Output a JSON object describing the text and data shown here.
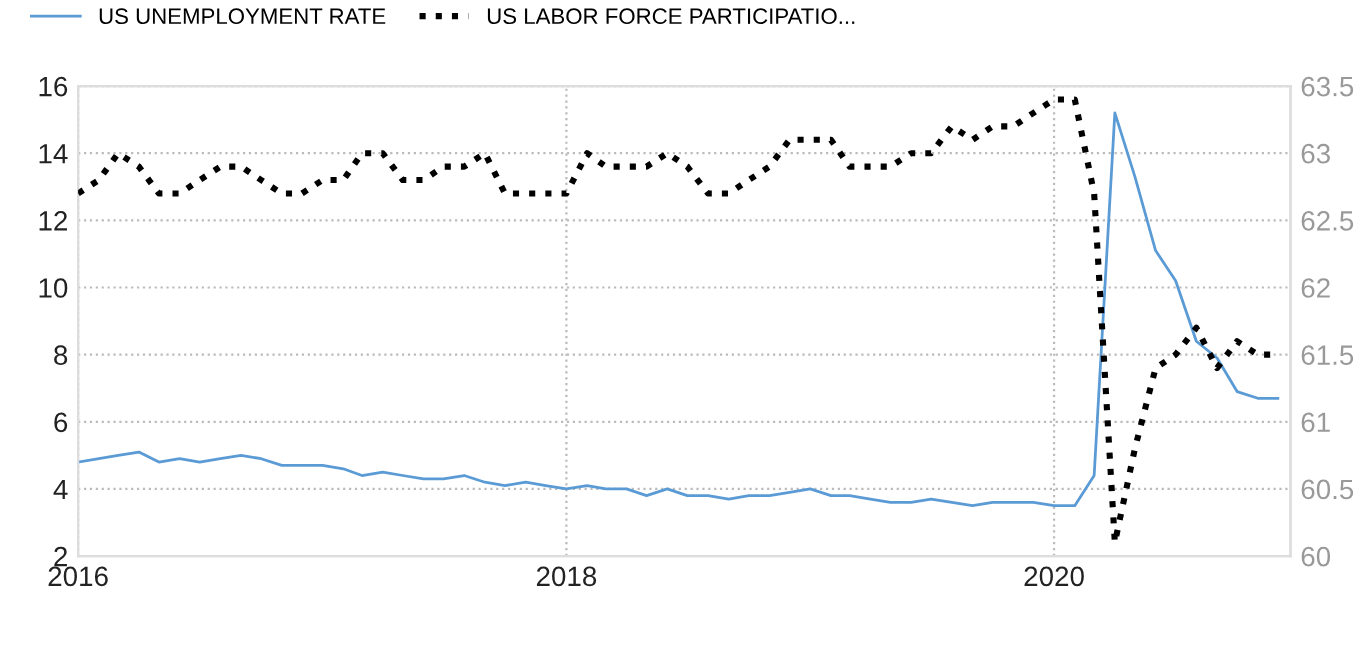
{
  "chart_data": {
    "type": "line",
    "x": [
      "2016-01",
      "2016-02",
      "2016-03",
      "2016-04",
      "2016-05",
      "2016-06",
      "2016-07",
      "2016-08",
      "2016-09",
      "2016-10",
      "2016-11",
      "2016-12",
      "2017-01",
      "2017-02",
      "2017-03",
      "2017-04",
      "2017-05",
      "2017-06",
      "2017-07",
      "2017-08",
      "2017-09",
      "2017-10",
      "2017-11",
      "2017-12",
      "2018-01",
      "2018-02",
      "2018-03",
      "2018-04",
      "2018-05",
      "2018-06",
      "2018-07",
      "2018-08",
      "2018-09",
      "2018-10",
      "2018-11",
      "2018-12",
      "2019-01",
      "2019-02",
      "2019-03",
      "2019-04",
      "2019-05",
      "2019-06",
      "2019-07",
      "2019-08",
      "2019-09",
      "2019-10",
      "2019-11",
      "2019-12",
      "2020-01",
      "2020-02",
      "2020-03",
      "2020-04",
      "2020-05",
      "2020-06",
      "2020-07",
      "2020-08",
      "2020-09",
      "2020-10",
      "2020-11",
      "2020-12"
    ],
    "series": [
      {
        "name": "US UNEMPLOYMENT RATE",
        "color": "#5b9bd5",
        "line_style": "solid",
        "values": [
          4.8,
          4.9,
          5.0,
          5.1,
          4.8,
          4.9,
          4.8,
          4.9,
          5.0,
          4.9,
          4.7,
          4.7,
          4.7,
          4.6,
          4.4,
          4.5,
          4.4,
          4.3,
          4.3,
          4.4,
          4.2,
          4.1,
          4.2,
          4.1,
          4.0,
          4.1,
          4.0,
          4.0,
          3.8,
          4.0,
          3.8,
          3.8,
          3.7,
          3.8,
          3.8,
          3.9,
          4.0,
          3.8,
          3.8,
          3.7,
          3.6,
          3.6,
          3.7,
          3.6,
          3.5,
          3.6,
          3.6,
          3.6,
          3.5,
          3.5,
          4.4,
          15.2,
          13.3,
          11.1,
          10.2,
          8.4,
          7.9,
          6.9,
          6.7,
          6.7
        ]
      },
      {
        "name": "US LABOR FORCE PARTICIPATIO...",
        "color": "#000000",
        "line_style": "dotted",
        "axis": "y2",
        "values": [
          62.7,
          62.8,
          63.0,
          62.9,
          62.7,
          62.7,
          62.8,
          62.9,
          62.9,
          62.8,
          62.7,
          62.7,
          62.8,
          62.8,
          63.0,
          63.0,
          62.8,
          62.8,
          62.9,
          62.9,
          63.0,
          62.7,
          62.7,
          62.7,
          62.7,
          63.0,
          62.9,
          62.9,
          62.9,
          63.0,
          62.9,
          62.7,
          62.7,
          62.8,
          62.9,
          63.1,
          63.1,
          63.1,
          62.9,
          62.9,
          62.9,
          63.0,
          63.0,
          63.2,
          63.1,
          63.2,
          63.2,
          63.3,
          63.4,
          63.4,
          62.7,
          60.1,
          60.8,
          61.4,
          61.5,
          61.7,
          61.4,
          61.6,
          61.5,
          61.5
        ]
      }
    ],
    "xlim": [
      "2016-01-01",
      "2020-12-20"
    ],
    "xticks": [
      {
        "value": "2016-01-01",
        "label": "2016"
      },
      {
        "value": "2018-01-01",
        "label": "2018"
      },
      {
        "value": "2020-01-01",
        "label": "2020"
      }
    ],
    "ylim": [
      2,
      16
    ],
    "yticks": [
      2,
      4,
      6,
      8,
      10,
      12,
      14,
      16
    ],
    "y2lim": [
      60,
      63.5
    ],
    "y2ticks": [
      60,
      60.5,
      61,
      61.5,
      62,
      62.5,
      63,
      63.5
    ],
    "grid": true,
    "legend": "top left",
    "marker": "none"
  }
}
